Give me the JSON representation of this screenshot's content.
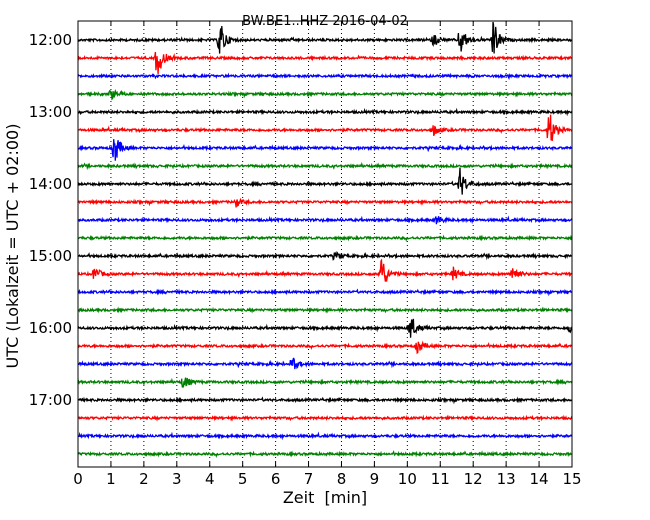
{
  "chart_data": {
    "type": "line",
    "title": "BW.BE1..HHZ 2016-04-02",
    "xlabel": "Zeit  [min]",
    "ylabel": "UTC (Lokalzeit = UTC + 02:00)",
    "xlim": [
      0,
      15
    ],
    "x_ticks": [
      0,
      1,
      2,
      3,
      4,
      5,
      6,
      7,
      8,
      9,
      10,
      11,
      12,
      13,
      14,
      15
    ],
    "x_grid": "dotted vertical at every minute",
    "y_ticks": [
      "12:00",
      "13:00",
      "14:00",
      "15:00",
      "16:00",
      "17:00"
    ],
    "trace_interval_min": 15,
    "trace_colors": [
      "#000000",
      "#ff0000",
      "#0000ff",
      "#008000"
    ],
    "traces": [
      {
        "start": "12:00",
        "events": [
          {
            "t": 4.3,
            "amp": 1.0
          },
          {
            "t": 10.8,
            "amp": 0.3
          },
          {
            "t": 11.6,
            "amp": 0.75
          },
          {
            "t": 12.6,
            "amp": 1.0
          }
        ]
      },
      {
        "start": "12:15",
        "events": [
          {
            "t": 2.4,
            "amp": 1.0
          }
        ]
      },
      {
        "start": "12:30",
        "events": []
      },
      {
        "start": "12:45",
        "events": [
          {
            "t": 1.0,
            "amp": 0.25
          }
        ]
      },
      {
        "start": "13:00",
        "events": []
      },
      {
        "start": "13:15",
        "events": [
          {
            "t": 10.8,
            "amp": 0.25
          },
          {
            "t": 14.3,
            "amp": 1.0
          }
        ]
      },
      {
        "start": "13:30",
        "events": [
          {
            "t": 1.1,
            "amp": 0.8
          }
        ]
      },
      {
        "start": "13:45",
        "events": []
      },
      {
        "start": "14:00",
        "events": [
          {
            "t": 11.6,
            "amp": 0.75
          }
        ]
      },
      {
        "start": "14:15",
        "events": [
          {
            "t": 4.8,
            "amp": 0.2
          }
        ]
      },
      {
        "start": "14:30",
        "events": [
          {
            "t": 10.9,
            "amp": 0.2
          }
        ]
      },
      {
        "start": "14:45",
        "events": []
      },
      {
        "start": "15:00",
        "events": [
          {
            "t": 7.8,
            "amp": 0.15
          }
        ]
      },
      {
        "start": "15:15",
        "events": [
          {
            "t": 0.5,
            "amp": 0.35
          },
          {
            "t": 9.2,
            "amp": 1.0
          },
          {
            "t": 11.4,
            "amp": 0.3
          },
          {
            "t": 13.2,
            "amp": 0.45
          }
        ]
      },
      {
        "start": "15:30",
        "events": []
      },
      {
        "start": "15:45",
        "events": []
      },
      {
        "start": "16:00",
        "events": [
          {
            "t": 10.1,
            "amp": 0.6
          },
          {
            "t": 14.9,
            "amp": 0.2
          }
        ]
      },
      {
        "start": "16:15",
        "events": [
          {
            "t": 10.3,
            "amp": 0.35
          }
        ]
      },
      {
        "start": "16:30",
        "events": [
          {
            "t": 6.5,
            "amp": 0.35
          }
        ]
      },
      {
        "start": "16:45",
        "events": [
          {
            "t": 3.2,
            "amp": 0.35
          }
        ]
      },
      {
        "start": "17:00",
        "events": []
      },
      {
        "start": "17:15",
        "events": []
      },
      {
        "start": "17:30",
        "events": []
      },
      {
        "start": "17:45",
        "events": []
      }
    ]
  }
}
